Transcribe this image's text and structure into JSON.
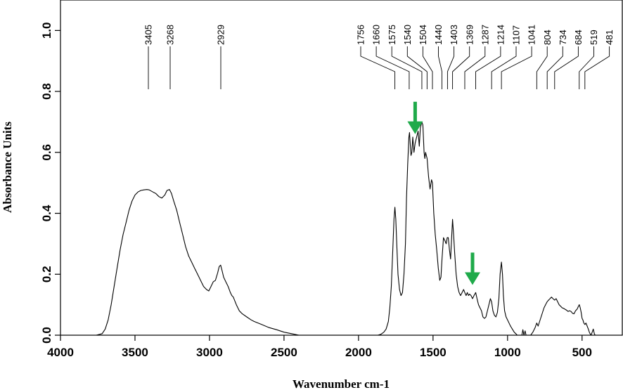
{
  "chart_data": {
    "type": "line",
    "xlabel": "Wavenumber cm-1",
    "ylabel": "Absorbance Units",
    "xlim": [
      4000,
      230
    ],
    "ylim": [
      0,
      1.1
    ],
    "x_ticks": [
      4000,
      3500,
      3000,
      2500,
      2000,
      1500,
      1000,
      500
    ],
    "x_tick_labels": [
      "4000",
      "3500",
      "3000",
      "2500",
      "2000",
      "1500",
      "1000",
      "500"
    ],
    "y_ticks": [
      0,
      0.2,
      0.4,
      0.6,
      0.8,
      1.0
    ],
    "y_tick_labels": [
      "0.0",
      "0.2",
      "0.4",
      "0.6",
      "0.8",
      "1.0"
    ],
    "line_color": "#000000",
    "marker_color": "#1faa4a",
    "grid": false,
    "series": [
      {
        "points": [
          [
            3760,
            0.0
          ],
          [
            3720,
            0.005
          ],
          [
            3700,
            0.02
          ],
          [
            3680,
            0.05
          ],
          [
            3660,
            0.1
          ],
          [
            3640,
            0.16
          ],
          [
            3620,
            0.22
          ],
          [
            3600,
            0.28
          ],
          [
            3580,
            0.33
          ],
          [
            3560,
            0.37
          ],
          [
            3540,
            0.41
          ],
          [
            3520,
            0.44
          ],
          [
            3500,
            0.46
          ],
          [
            3480,
            0.47
          ],
          [
            3460,
            0.475
          ],
          [
            3440,
            0.477
          ],
          [
            3420,
            0.478
          ],
          [
            3405,
            0.477
          ],
          [
            3380,
            0.47
          ],
          [
            3360,
            0.465
          ],
          [
            3340,
            0.455
          ],
          [
            3320,
            0.45
          ],
          [
            3300,
            0.46
          ],
          [
            3285,
            0.475
          ],
          [
            3268,
            0.478
          ],
          [
            3255,
            0.465
          ],
          [
            3240,
            0.44
          ],
          [
            3220,
            0.41
          ],
          [
            3200,
            0.37
          ],
          [
            3180,
            0.33
          ],
          [
            3160,
            0.29
          ],
          [
            3140,
            0.26
          ],
          [
            3120,
            0.24
          ],
          [
            3100,
            0.22
          ],
          [
            3080,
            0.2
          ],
          [
            3060,
            0.18
          ],
          [
            3040,
            0.16
          ],
          [
            3020,
            0.15
          ],
          [
            3005,
            0.145
          ],
          [
            2990,
            0.16
          ],
          [
            2975,
            0.175
          ],
          [
            2960,
            0.18
          ],
          [
            2945,
            0.205
          ],
          [
            2935,
            0.225
          ],
          [
            2925,
            0.23
          ],
          [
            2915,
            0.21
          ],
          [
            2905,
            0.19
          ],
          [
            2890,
            0.175
          ],
          [
            2875,
            0.16
          ],
          [
            2860,
            0.14
          ],
          [
            2850,
            0.13
          ],
          [
            2840,
            0.125
          ],
          [
            2820,
            0.1
          ],
          [
            2800,
            0.08
          ],
          [
            2780,
            0.07
          ],
          [
            2750,
            0.06
          ],
          [
            2720,
            0.05
          ],
          [
            2700,
            0.045
          ],
          [
            2650,
            0.035
          ],
          [
            2600,
            0.025
          ],
          [
            2550,
            0.018
          ],
          [
            2500,
            0.01
          ],
          [
            2450,
            0.005
          ],
          [
            2400,
            0.0
          ],
          [
            2350,
            null
          ],
          [
            1870,
            0.0
          ],
          [
            1850,
            0.003
          ],
          [
            1830,
            0.01
          ],
          [
            1815,
            0.02
          ],
          [
            1800,
            0.045
          ],
          [
            1790,
            0.09
          ],
          [
            1780,
            0.16
          ],
          [
            1770,
            0.28
          ],
          [
            1762,
            0.38
          ],
          [
            1756,
            0.42
          ],
          [
            1750,
            0.38
          ],
          [
            1742,
            0.28
          ],
          [
            1735,
            0.2
          ],
          [
            1725,
            0.15
          ],
          [
            1715,
            0.13
          ],
          [
            1705,
            0.14
          ],
          [
            1695,
            0.2
          ],
          [
            1685,
            0.3
          ],
          [
            1678,
            0.45
          ],
          [
            1670,
            0.56
          ],
          [
            1662,
            0.65
          ],
          [
            1658,
            0.665
          ],
          [
            1652,
            0.62
          ],
          [
            1648,
            0.59
          ],
          [
            1642,
            0.6
          ],
          [
            1636,
            0.65
          ],
          [
            1628,
            0.6
          ],
          [
            1620,
            0.63
          ],
          [
            1610,
            0.65
          ],
          [
            1600,
            0.67
          ],
          [
            1592,
            0.62
          ],
          [
            1585,
            0.68
          ],
          [
            1575,
            0.7
          ],
          [
            1568,
            0.69
          ],
          [
            1560,
            0.6
          ],
          [
            1555,
            0.58
          ],
          [
            1550,
            0.6
          ],
          [
            1540,
            0.58
          ],
          [
            1530,
            0.52
          ],
          [
            1520,
            0.48
          ],
          [
            1510,
            0.51
          ],
          [
            1504,
            0.5
          ],
          [
            1495,
            0.4
          ],
          [
            1485,
            0.33
          ],
          [
            1475,
            0.28
          ],
          [
            1465,
            0.22
          ],
          [
            1455,
            0.18
          ],
          [
            1447,
            0.19
          ],
          [
            1440,
            0.25
          ],
          [
            1430,
            0.32
          ],
          [
            1420,
            0.31
          ],
          [
            1412,
            0.3
          ],
          [
            1405,
            0.32
          ],
          [
            1398,
            0.32
          ],
          [
            1390,
            0.28
          ],
          [
            1382,
            0.25
          ],
          [
            1375,
            0.32
          ],
          [
            1369,
            0.38
          ],
          [
            1362,
            0.33
          ],
          [
            1355,
            0.27
          ],
          [
            1345,
            0.2
          ],
          [
            1335,
            0.16
          ],
          [
            1325,
            0.14
          ],
          [
            1315,
            0.13
          ],
          [
            1305,
            0.14
          ],
          [
            1295,
            0.15
          ],
          [
            1287,
            0.14
          ],
          [
            1278,
            0.13
          ],
          [
            1270,
            0.14
          ],
          [
            1262,
            0.13
          ],
          [
            1255,
            0.135
          ],
          [
            1245,
            0.13
          ],
          [
            1235,
            0.12
          ],
          [
            1225,
            0.13
          ],
          [
            1214,
            0.14
          ],
          [
            1205,
            0.12
          ],
          [
            1195,
            0.1
          ],
          [
            1185,
            0.09
          ],
          [
            1175,
            0.08
          ],
          [
            1165,
            0.06
          ],
          [
            1155,
            0.055
          ],
          [
            1145,
            0.06
          ],
          [
            1135,
            0.08
          ],
          [
            1125,
            0.1
          ],
          [
            1115,
            0.12
          ],
          [
            1107,
            0.11
          ],
          [
            1098,
            0.08
          ],
          [
            1088,
            0.065
          ],
          [
            1078,
            0.06
          ],
          [
            1068,
            0.075
          ],
          [
            1058,
            0.12
          ],
          [
            1050,
            0.2
          ],
          [
            1041,
            0.24
          ],
          [
            1034,
            0.2
          ],
          [
            1028,
            0.13
          ],
          [
            1020,
            0.08
          ],
          [
            1010,
            0.06
          ],
          [
            1000,
            0.05
          ],
          [
            990,
            0.04
          ],
          [
            980,
            0.03
          ],
          [
            968,
            0.02
          ],
          [
            955,
            0.01
          ],
          [
            945,
            0.005
          ],
          [
            935,
            0.0
          ],
          [
            915,
            null
          ],
          [
            904,
            0.0
          ],
          [
            897,
            0.018
          ],
          [
            890,
            0.0
          ],
          [
            882,
            0.014
          ],
          [
            876,
            0.0
          ],
          [
            860,
            null
          ],
          [
            845,
            0.0
          ],
          [
            830,
            0.01
          ],
          [
            815,
            0.025
          ],
          [
            804,
            0.04
          ],
          [
            795,
            0.03
          ],
          [
            785,
            0.045
          ],
          [
            775,
            0.06
          ],
          [
            765,
            0.075
          ],
          [
            755,
            0.09
          ],
          [
            745,
            0.1
          ],
          [
            734,
            0.11
          ],
          [
            725,
            0.115
          ],
          [
            715,
            0.12
          ],
          [
            705,
            0.125
          ],
          [
            695,
            0.12
          ],
          [
            684,
            0.115
          ],
          [
            674,
            0.12
          ],
          [
            664,
            0.11
          ],
          [
            654,
            0.1
          ],
          [
            644,
            0.095
          ],
          [
            634,
            0.09
          ],
          [
            624,
            0.088
          ],
          [
            614,
            0.085
          ],
          [
            604,
            0.082
          ],
          [
            594,
            0.078
          ],
          [
            584,
            0.08
          ],
          [
            574,
            0.078
          ],
          [
            564,
            0.072
          ],
          [
            554,
            0.07
          ],
          [
            544,
            0.08
          ],
          [
            534,
            0.085
          ],
          [
            524,
            0.095
          ],
          [
            519,
            0.1
          ],
          [
            512,
            0.09
          ],
          [
            506,
            0.075
          ],
          [
            500,
            0.055
          ],
          [
            494,
            0.05
          ],
          [
            488,
            0.04
          ],
          [
            481,
            0.035
          ],
          [
            474,
            0.04
          ],
          [
            466,
            0.03
          ],
          [
            458,
            0.02
          ],
          [
            450,
            0.008
          ],
          [
            440,
            0.0
          ],
          [
            432,
            0.01
          ],
          [
            425,
            0.02
          ],
          [
            418,
            0.005
          ],
          [
            412,
            0.0
          ]
        ]
      }
    ],
    "peak_labels": [
      "3405",
      "3268",
      "2929",
      "1756",
      "1660",
      "1575",
      "1540",
      "1504",
      "1440",
      "1403",
      "1369",
      "1287",
      "1214",
      "1107",
      "1041",
      "804",
      "734",
      "684",
      "519",
      "481"
    ],
    "peak_x": [
      3405,
      3268,
      2929,
      1756,
      1660,
      1575,
      1540,
      1504,
      1440,
      1403,
      1369,
      1287,
      1214,
      1107,
      1041,
      804,
      734,
      684,
      519,
      481
    ],
    "markers": [
      {
        "type": "arrow-down",
        "x": 1620,
        "y": 0.66
      },
      {
        "type": "arrow-down",
        "x": 1235,
        "y": 0.165
      }
    ]
  }
}
